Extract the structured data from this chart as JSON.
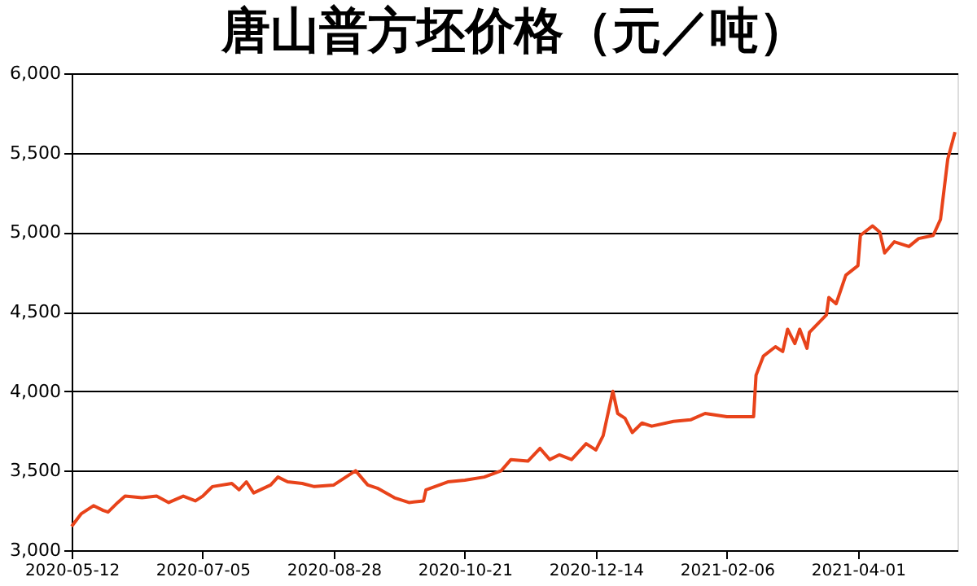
{
  "chart_data": {
    "type": "line",
    "title": "唐山普方坯价格（元／吨）",
    "x": [
      "2020-05-12",
      "2020-05-16",
      "2020-05-21",
      "2020-05-25",
      "2020-05-27",
      "2020-05-31",
      "2020-06-03",
      "2020-06-10",
      "2020-06-16",
      "2020-06-21",
      "2020-06-27",
      "2020-07-02",
      "2020-07-05",
      "2020-07-09",
      "2020-07-17",
      "2020-07-20",
      "2020-07-23",
      "2020-07-26",
      "2020-08-02",
      "2020-08-05",
      "2020-08-09",
      "2020-08-15",
      "2020-08-20",
      "2020-08-28",
      "2020-09-02",
      "2020-09-06",
      "2020-09-11",
      "2020-09-15",
      "2020-09-22",
      "2020-09-28",
      "2020-10-04",
      "2020-10-05",
      "2020-10-14",
      "2020-10-21",
      "2020-10-29",
      "2020-11-05",
      "2020-11-09",
      "2020-11-16",
      "2020-11-21",
      "2020-11-25",
      "2020-11-29",
      "2020-12-04",
      "2020-12-10",
      "2020-12-14",
      "2020-12-17",
      "2020-12-21",
      "2020-12-23",
      "2020-12-26",
      "2020-12-29",
      "2021-01-02",
      "2021-01-06",
      "2021-01-15",
      "2021-01-22",
      "2021-01-28",
      "2021-02-06",
      "2021-02-17",
      "2021-02-18",
      "2021-02-21",
      "2021-02-26",
      "2021-03-01",
      "2021-03-03",
      "2021-03-06",
      "2021-03-08",
      "2021-03-11",
      "2021-03-12",
      "2021-03-19",
      "2021-03-20",
      "2021-03-23",
      "2021-03-27",
      "2021-04-01",
      "2021-04-02",
      "2021-04-07",
      "2021-04-10",
      "2021-04-12",
      "2021-04-16",
      "2021-04-22",
      "2021-04-26",
      "2021-05-02",
      "2021-05-05",
      "2021-05-08",
      "2021-05-11"
    ],
    "series": [
      {
        "color": "#e8431a",
        "values": [
          3150,
          3230,
          3280,
          3250,
          3240,
          3300,
          3340,
          3330,
          3340,
          3300,
          3340,
          3310,
          3340,
          3400,
          3420,
          3380,
          3430,
          3360,
          3410,
          3460,
          3430,
          3420,
          3400,
          3410,
          3460,
          3500,
          3410,
          3390,
          3330,
          3300,
          3310,
          3380,
          3430,
          3440,
          3460,
          3500,
          3570,
          3560,
          3640,
          3570,
          3600,
          3570,
          3670,
          3630,
          3720,
          4000,
          3860,
          3830,
          3740,
          3800,
          3780,
          3810,
          3820,
          3860,
          3840,
          3840,
          4100,
          4220,
          4280,
          4250,
          4390,
          4300,
          4390,
          4270,
          4370,
          4480,
          4590,
          4550,
          4730,
          4790,
          4980,
          5040,
          5000,
          4870,
          4940,
          4910,
          4960,
          4980,
          5080,
          5460,
          5630
        ]
      }
    ],
    "xlim": [
      "2020-05-12",
      "2021-05-12"
    ],
    "xticks": [
      "2020-05-12",
      "2020-07-05",
      "2020-08-28",
      "2020-10-21",
      "2020-12-14",
      "2021-02-06",
      "2021-04-01"
    ],
    "ylim": [
      3000,
      6000
    ],
    "yticks": [
      {
        "value": 3000,
        "label": "3,000"
      },
      {
        "value": 3500,
        "label": "3,500"
      },
      {
        "value": 4000,
        "label": "4,000"
      },
      {
        "value": 4500,
        "label": "4,500"
      },
      {
        "value": 5000,
        "label": "5,000"
      },
      {
        "value": 5500,
        "label": "5,500"
      },
      {
        "value": 6000,
        "label": "6,000"
      }
    ],
    "grid": "y",
    "line_style": "solid"
  }
}
